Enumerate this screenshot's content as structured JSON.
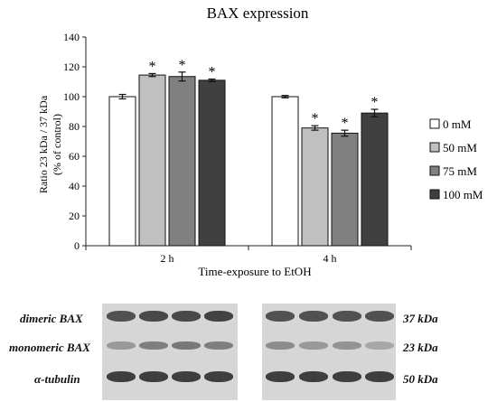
{
  "chart_data": {
    "type": "bar",
    "title": "BAX expression",
    "xlabel": "Time-exposure to EtOH",
    "ylabel": [
      "Ratio 23 kDa / 37 kDa",
      "(% of control)"
    ],
    "ylim": [
      0,
      140
    ],
    "yticks": [
      0,
      20,
      40,
      60,
      80,
      100,
      120,
      140
    ],
    "categories": [
      "2 h",
      "4 h"
    ],
    "legend_position": "right",
    "grid": false,
    "series": [
      {
        "name": "0 mM",
        "color": "#ffffff",
        "values": [
          100,
          100
        ],
        "errors": [
          1.5,
          0.8
        ],
        "significance": [
          "",
          ""
        ]
      },
      {
        "name": "50 mM",
        "color": "#c0c0c0",
        "values": [
          114.5,
          79
        ],
        "errors": [
          1.0,
          1.5
        ],
        "significance": [
          "*",
          "*"
        ]
      },
      {
        "name": "75 mM",
        "color": "#808080",
        "values": [
          113.5,
          75.5
        ],
        "errors": [
          3.0,
          2.0
        ],
        "significance": [
          "*",
          "*"
        ]
      },
      {
        "name": "100 mM",
        "color": "#404040",
        "values": [
          111,
          89
        ],
        "errors": [
          0.8,
          2.5
        ],
        "significance": [
          "*",
          "*"
        ]
      }
    ]
  },
  "blot": {
    "rows": [
      {
        "label": "dimeric BAX",
        "weight": "37 kDa"
      },
      {
        "label": "monomeric BAX",
        "weight": "23 kDa"
      },
      {
        "label": "α-tubulin",
        "weight": "50 kDa"
      }
    ]
  }
}
